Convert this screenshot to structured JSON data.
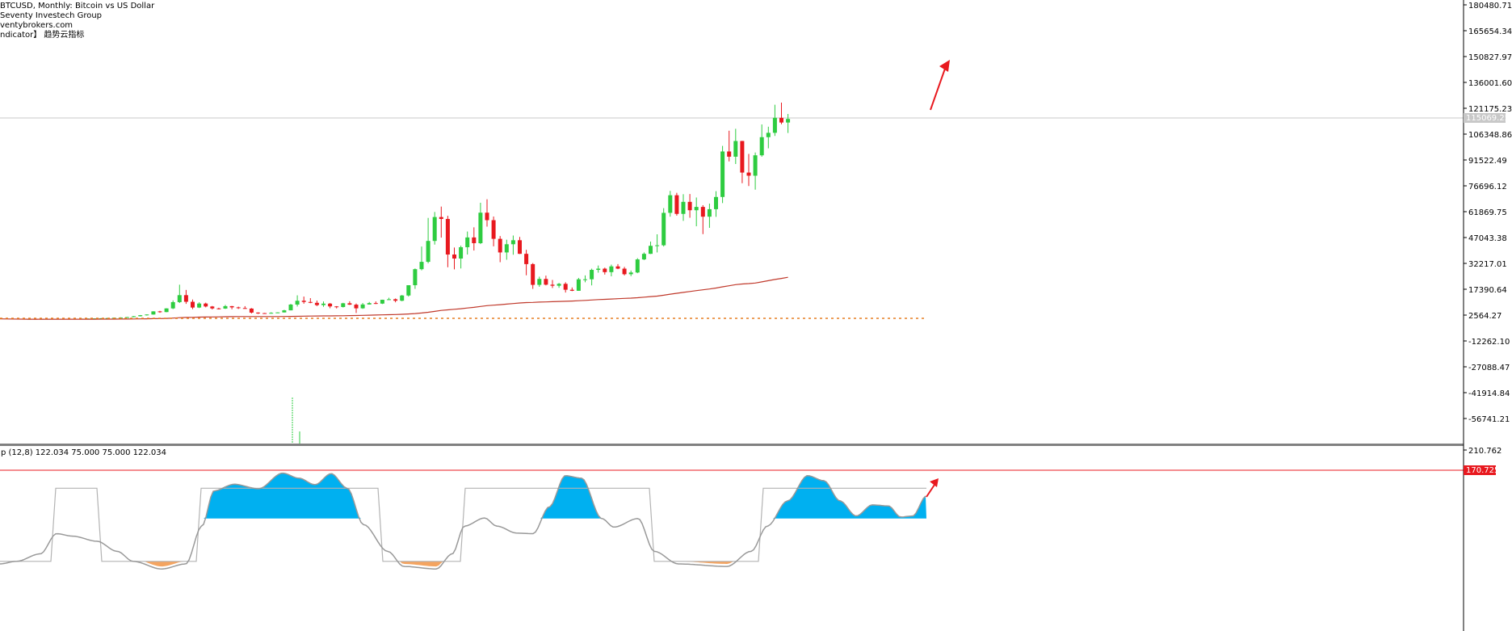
{
  "header": {
    "line1": "BTCUSD, Monthly:  Bitcoin vs US Dollar",
    "line2": "Seventy Investech Group",
    "line3": "ventybrokers.com",
    "line4": "ndicator】 趋势云指标"
  },
  "indicator_title": "p (12,8) 122.034 75.000 75.000 122.034",
  "colors": {
    "bull": "#2ecc40",
    "bear": "#e8191f",
    "ma": "#c0392b",
    "zero_dots": "#e67e22",
    "cloud_pos": "#00b0f0",
    "cloud_neg": "#f4a460",
    "osc_line": "#999999",
    "step_line": "#b3b3b3",
    "level_line": "#e8191f",
    "current_price_line": "#c8c8c8"
  },
  "price_axis": {
    "ticks": [
      "180480.71",
      "165654.34",
      "150827.97",
      "136001.60",
      "121175.23",
      "106348.86",
      "91522.49",
      "76696.12",
      "61869.75",
      "47043.38",
      "32217.01",
      "17390.64",
      "2564.27",
      "-12262.10",
      "-27088.47",
      "-41914.84",
      "-56741.21"
    ],
    "current_price_label": "115069.25"
  },
  "indicator_axis": {
    "ticks": [
      "210.762"
    ],
    "level_label": "170.725"
  },
  "chart_data": [
    {
      "type": "candlestick",
      "title": "BTCUSD, Monthly:  Bitcoin vs US Dollar",
      "ylim": [
        -60000,
        180480.71
      ],
      "current_price": 115069.25,
      "moving_average_end": 30000,
      "candles": [
        [
          400,
          450,
          380,
          420
        ],
        [
          420,
          440,
          390,
          410
        ],
        [
          410,
          450,
          400,
          430
        ],
        [
          430,
          460,
          410,
          440
        ],
        [
          440,
          470,
          420,
          450
        ],
        [
          450,
          480,
          430,
          460
        ],
        [
          460,
          500,
          440,
          470
        ],
        [
          470,
          520,
          450,
          500
        ],
        [
          500,
          560,
          480,
          540
        ],
        [
          540,
          620,
          520,
          600
        ],
        [
          600,
          700,
          580,
          680
        ],
        [
          680,
          800,
          660,
          760
        ],
        [
          760,
          900,
          700,
          880
        ],
        [
          880,
          1100,
          850,
          1050
        ],
        [
          1050,
          1300,
          1000,
          1200
        ],
        [
          1200,
          1500,
          1150,
          1400
        ],
        [
          1400,
          2000,
          1300,
          1900
        ],
        [
          1900,
          2600,
          1800,
          2500
        ],
        [
          2500,
          3000,
          2300,
          2900
        ],
        [
          2900,
          4800,
          2800,
          4700
        ],
        [
          4700,
          5000,
          3900,
          4300
        ],
        [
          4300,
          6500,
          4200,
          6400
        ],
        [
          6400,
          11000,
          6000,
          10000
        ],
        [
          10000,
          20000,
          9500,
          14000
        ],
        [
          14000,
          17000,
          9000,
          10200
        ],
        [
          10200,
          11500,
          6000,
          6900
        ],
        [
          6900,
          9900,
          6600,
          9200
        ],
        [
          9200,
          9700,
          7000,
          7500
        ],
        [
          7500,
          7800,
          5800,
          6400
        ],
        [
          6400,
          6800,
          5800,
          6300
        ],
        [
          6300,
          8400,
          6100,
          7700
        ],
        [
          7700,
          7800,
          5900,
          7000
        ],
        [
          7000,
          7400,
          6100,
          6600
        ],
        [
          6600,
          7700,
          6200,
          6300
        ],
        [
          6300,
          6600,
          3500,
          4000
        ],
        [
          4000,
          4200,
          3200,
          3700
        ],
        [
          3700,
          3800,
          3400,
          3450
        ],
        [
          3450,
          4200,
          3400,
          3850
        ],
        [
          3850,
          4150,
          3700,
          4100
        ],
        [
          4100,
          5600,
          4050,
          5300
        ],
        [
          5300,
          9000,
          5300,
          8600
        ],
        [
          8600,
          13900,
          7500,
          10800
        ],
        [
          10800,
          13200,
          9100,
          10100
        ],
        [
          10100,
          12300,
          9400,
          9600
        ],
        [
          9600,
          10900,
          7700,
          8300
        ],
        [
          8300,
          10400,
          7300,
          9150
        ],
        [
          9150,
          9500,
          6500,
          7550
        ],
        [
          7550,
          7700,
          6400,
          7200
        ],
        [
          7200,
          9600,
          6900,
          9350
        ],
        [
          9350,
          10500,
          8400,
          8550
        ],
        [
          8550,
          9200,
          3800,
          6450
        ],
        [
          6450,
          9500,
          6150,
          8650
        ],
        [
          8650,
          10100,
          8600,
          9450
        ],
        [
          9450,
          10400,
          8900,
          9150
        ],
        [
          9150,
          11400,
          8900,
          11350
        ],
        [
          11350,
          12500,
          11200,
          11650
        ],
        [
          11650,
          12100,
          9900,
          10800
        ],
        [
          10800,
          14100,
          10500,
          13800
        ],
        [
          13800,
          19500,
          13200,
          19700
        ],
        [
          19700,
          29300,
          17600,
          28900
        ],
        [
          28900,
          41900,
          28200,
          33100
        ],
        [
          33100,
          58300,
          32300,
          45100
        ],
        [
          45100,
          61700,
          43000,
          58800
        ],
        [
          58800,
          64800,
          47000,
          57700
        ],
        [
          57700,
          59500,
          30000,
          37300
        ],
        [
          37300,
          41300,
          28800,
          35000
        ],
        [
          35000,
          42400,
          29300,
          41500
        ],
        [
          41500,
          50500,
          37300,
          47100
        ],
        [
          47100,
          52900,
          39600,
          43800
        ],
        [
          43800,
          67000,
          43300,
          61300
        ],
        [
          61300,
          69000,
          53300,
          57000
        ],
        [
          57000,
          59100,
          42000,
          46300
        ],
        [
          46300,
          47900,
          32900,
          38500
        ],
        [
          38500,
          45800,
          34300,
          43200
        ],
        [
          43200,
          48200,
          37200,
          45500
        ],
        [
          45500,
          47400,
          37600,
          37700
        ],
        [
          37700,
          40000,
          25400,
          31800
        ],
        [
          31800,
          32400,
          17600,
          19900
        ],
        [
          19900,
          24600,
          18800,
          23300
        ],
        [
          23300,
          25200,
          19600,
          20000
        ],
        [
          20000,
          22700,
          18100,
          19400
        ],
        [
          19400,
          21000,
          18200,
          20500
        ],
        [
          20500,
          21400,
          15500,
          17100
        ],
        [
          17100,
          18400,
          16300,
          16500
        ],
        [
          16500,
          23900,
          16500,
          23100
        ],
        [
          23100,
          25300,
          21400,
          23100
        ],
        [
          23100,
          29200,
          19600,
          28500
        ],
        [
          28500,
          31000,
          26900,
          29200
        ],
        [
          29200,
          29800,
          25800,
          27200
        ],
        [
          27200,
          31500,
          24800,
          30500
        ],
        [
          30500,
          31800,
          28900,
          29200
        ],
        [
          29200,
          30200,
          25300,
          26000
        ],
        [
          26000,
          28100,
          24900,
          27000
        ],
        [
          27000,
          35200,
          26600,
          34500
        ],
        [
          34500,
          38500,
          34100,
          37700
        ],
        [
          37700,
          44700,
          37600,
          42300
        ],
        [
          42300,
          48900,
          38500,
          42600
        ],
        [
          42600,
          63900,
          41900,
          61200
        ],
        [
          61200,
          73800,
          59000,
          71300
        ],
        [
          71300,
          72700,
          59600,
          60600
        ],
        [
          60600,
          71900,
          56600,
          67500
        ],
        [
          67500,
          72000,
          58400,
          62700
        ],
        [
          62700,
          70000,
          53500,
          64600
        ],
        [
          64600,
          65600,
          49000,
          59000
        ],
        [
          59000,
          66500,
          52600,
          63300
        ],
        [
          63300,
          73600,
          58900,
          70300
        ],
        [
          70300,
          99600,
          66800,
          96400
        ],
        [
          96400,
          108300,
          90700,
          93400
        ],
        [
          93400,
          109400,
          89200,
          102400
        ],
        [
          102400,
          102500,
          78200,
          84300
        ],
        [
          84300,
          95000,
          76600,
          82500
        ],
        [
          82500,
          95800,
          74500,
          94200
        ],
        [
          94200,
          111900,
          93400,
          104600
        ],
        [
          104600,
          110600,
          98200,
          107100
        ],
        [
          107100,
          123200,
          105300,
          115700
        ],
        [
          115700,
          124400,
          112000,
          113000
        ],
        [
          113000,
          117900,
          107000,
          115069
        ]
      ]
    },
    {
      "type": "area",
      "title": "p (12,8) 122.034 75.000 75.000 122.034",
      "ylim": [
        -10,
        210.762
      ],
      "baseline": 75,
      "level": 170.725,
      "step_levels": [
        75,
        122.034
      ],
      "last_values": [
        122.034,
        75.0,
        75.0,
        122.034
      ]
    }
  ]
}
